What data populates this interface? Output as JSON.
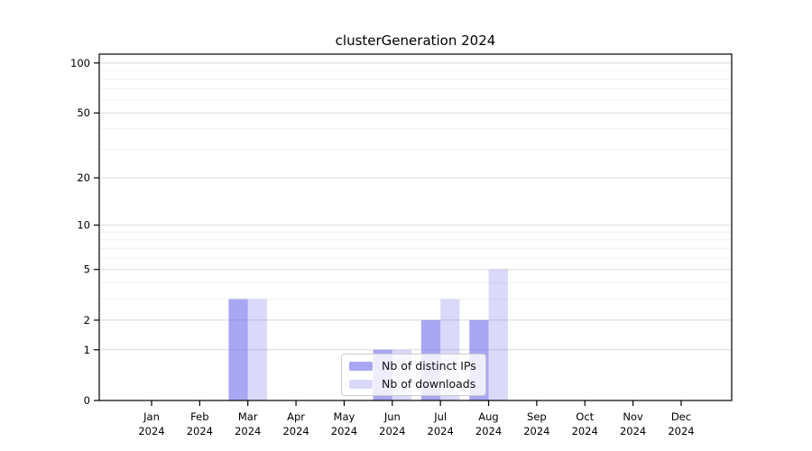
{
  "title": "clusterGeneration 2024",
  "chart_data": {
    "type": "bar",
    "title": "clusterGeneration 2024",
    "categories": [
      "Jan 2024",
      "Feb 2024",
      "Mar 2024",
      "Apr 2024",
      "May 2024",
      "Jun 2024",
      "Jul 2024",
      "Aug 2024",
      "Sep 2024",
      "Oct 2024",
      "Nov 2024",
      "Dec 2024"
    ],
    "series": [
      {
        "name": "Nb of distinct IPs",
        "color": "rgba(99,95,234,0.55)",
        "values": [
          0,
          0,
          3,
          0,
          0,
          1,
          2,
          2,
          0,
          0,
          0,
          0
        ]
      },
      {
        "name": "Nb of downloads",
        "color": "rgba(99,95,234,0.24)",
        "values": [
          0,
          0,
          3,
          0,
          0,
          1,
          3,
          5,
          0,
          0,
          0,
          0
        ]
      }
    ],
    "xlabel": "",
    "ylabel": "",
    "yscale": "log1p",
    "ylim": [
      0,
      113
    ],
    "yticks": [
      0,
      1,
      2,
      5,
      10,
      20,
      50,
      100
    ],
    "yticks_minor": [
      3,
      4,
      6,
      7,
      8,
      9,
      30,
      40,
      60,
      70,
      80,
      90
    ],
    "grid": true,
    "grid_major_color": "#d9d9d9",
    "grid_minor_color": "#f1f1f1",
    "legend_position": "lower-center-inside"
  }
}
